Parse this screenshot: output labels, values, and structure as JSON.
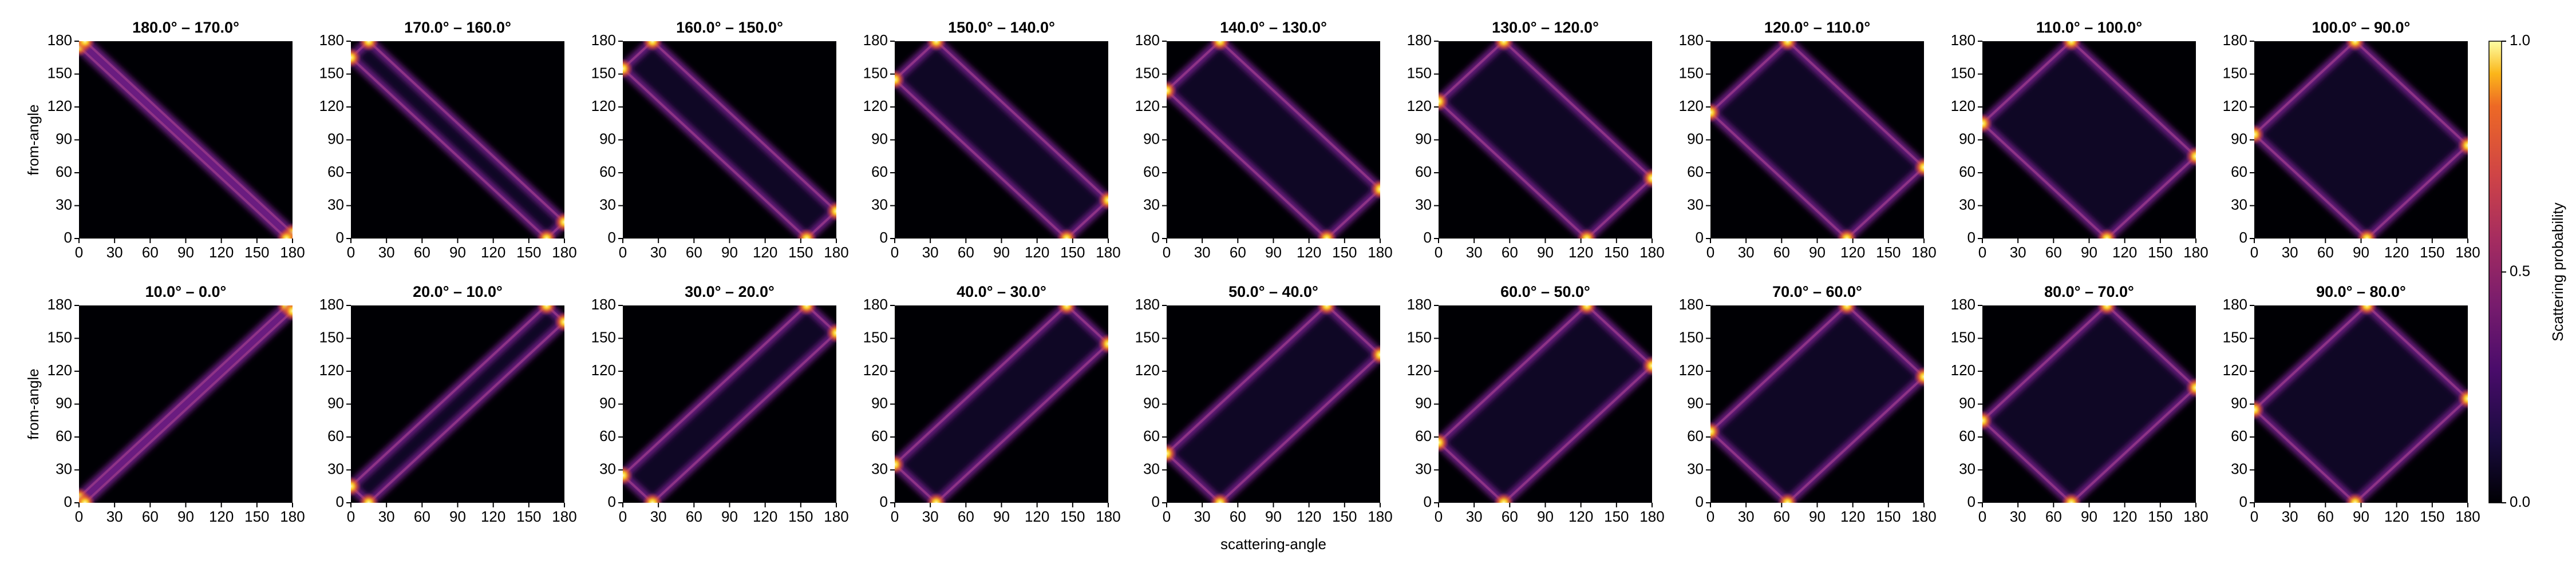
{
  "chart_data": {
    "type": "heatmap",
    "panels": [
      {
        "title": "180.0° – 170.0°"
      },
      {
        "title": "170.0° – 160.0°"
      },
      {
        "title": "160.0° – 150.0°"
      },
      {
        "title": "150.0° – 140.0°"
      },
      {
        "title": "140.0° – 130.0°"
      },
      {
        "title": "130.0° – 120.0°"
      },
      {
        "title": "120.0° – 110.0°"
      },
      {
        "title": "110.0° – 100.0°"
      },
      {
        "title": "100.0° – 90.0°"
      },
      {
        "title": "10.0° – 0.0°"
      },
      {
        "title": "20.0° – 10.0°"
      },
      {
        "title": "30.0° – 20.0°"
      },
      {
        "title": "40.0° – 30.0°"
      },
      {
        "title": "50.0° – 40.0°"
      },
      {
        "title": "60.0° – 50.0°"
      },
      {
        "title": "70.0° – 60.0°"
      },
      {
        "title": "80.0° – 70.0°"
      },
      {
        "title": "90.0° – 80.0°"
      }
    ],
    "xlabel": "scattering-angle",
    "ylabel": "from-angle",
    "xlim": [
      0,
      180
    ],
    "ylim": [
      0,
      180
    ],
    "xticks": [
      0,
      30,
      60,
      90,
      120,
      150,
      180
    ],
    "yticks": [
      0,
      30,
      60,
      90,
      120,
      150,
      180
    ],
    "colorbar": {
      "label": "Scattering probability",
      "lim": [
        0,
        1
      ],
      "ticks": [
        {
          "value": 0,
          "label": "0.0"
        },
        {
          "value": 0.5,
          "label": "0.5"
        },
        {
          "value": 1,
          "label": "1.0"
        }
      ]
    }
  }
}
